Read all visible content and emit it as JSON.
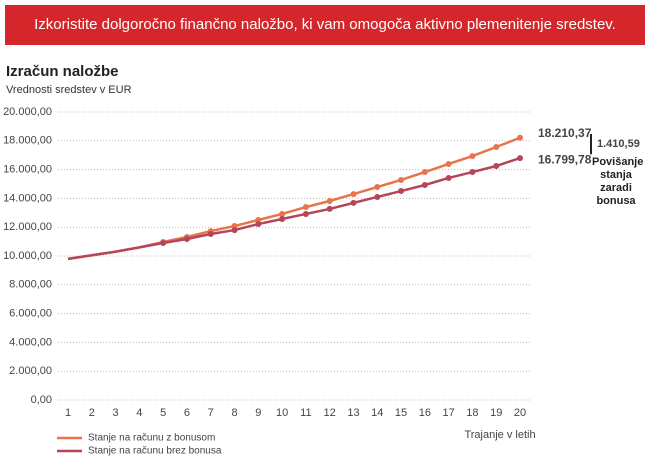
{
  "banner": {
    "text": "Izkoristite dolgoročno finančno naložbo, ki vam omogoča aktivno plemenitenje sredstev."
  },
  "chart_data": {
    "type": "line",
    "title": "Izračun naložbe",
    "subtitle": "Vrednosti sredstev v EUR",
    "x_label": "Trajanje v letih",
    "categories": [
      "1",
      "2",
      "3",
      "4",
      "5",
      "6",
      "7",
      "8",
      "9",
      "10",
      "11",
      "12",
      "13",
      "14",
      "15",
      "16",
      "17",
      "18",
      "19",
      "20"
    ],
    "series": [
      {
        "name": "Stanje na računu z bonusom",
        "color": "#e8744a",
        "values": [
          9800,
          10050,
          10300,
          10600,
          10970,
          11320,
          11730,
          12080,
          12500,
          12920,
          13400,
          13820,
          14300,
          14790,
          15280,
          15830,
          16390,
          16940,
          17570,
          18210.37
        ],
        "value_labels": [
          null,
          null,
          null,
          null,
          null,
          null,
          null,
          null,
          null,
          null,
          null,
          null,
          null,
          null,
          null,
          null,
          null,
          null,
          null,
          "18.210,37"
        ]
      },
      {
        "name": "Stanje na računu brez bonusa",
        "color": "#b4465a",
        "values": [
          9800,
          10050,
          10300,
          10600,
          10900,
          11180,
          11530,
          11800,
          12220,
          12570,
          12920,
          13270,
          13690,
          14100,
          14510,
          14930,
          15420,
          15830,
          16250,
          16799.78
        ],
        "value_labels": [
          null,
          null,
          null,
          null,
          null,
          null,
          null,
          null,
          null,
          null,
          null,
          null,
          null,
          null,
          null,
          null,
          null,
          null,
          null,
          "16.799,78"
        ]
      }
    ],
    "difference": {
      "value": 1410.59,
      "label": "1.410,59",
      "text": "Povišanje stanja zaradi bonusa"
    },
    "ylim": [
      0,
      20000
    ],
    "yticks": [
      {
        "value": 0,
        "label": "0,00"
      },
      {
        "value": 2000,
        "label": "2.000,00"
      },
      {
        "value": 4000,
        "label": "4.000,00"
      },
      {
        "value": 6000,
        "label": "6.000,00"
      },
      {
        "value": 8000,
        "label": "8.000,00"
      },
      {
        "value": 10000,
        "label": "10.000,00"
      },
      {
        "value": 12000,
        "label": "12.000,00"
      },
      {
        "value": 14000,
        "label": "14.000,00"
      },
      {
        "value": 16000,
        "label": "16.000,00"
      },
      {
        "value": 18000,
        "label": "18.000,00"
      },
      {
        "value": 20000,
        "label": "20.000,00"
      }
    ],
    "grid": true
  }
}
